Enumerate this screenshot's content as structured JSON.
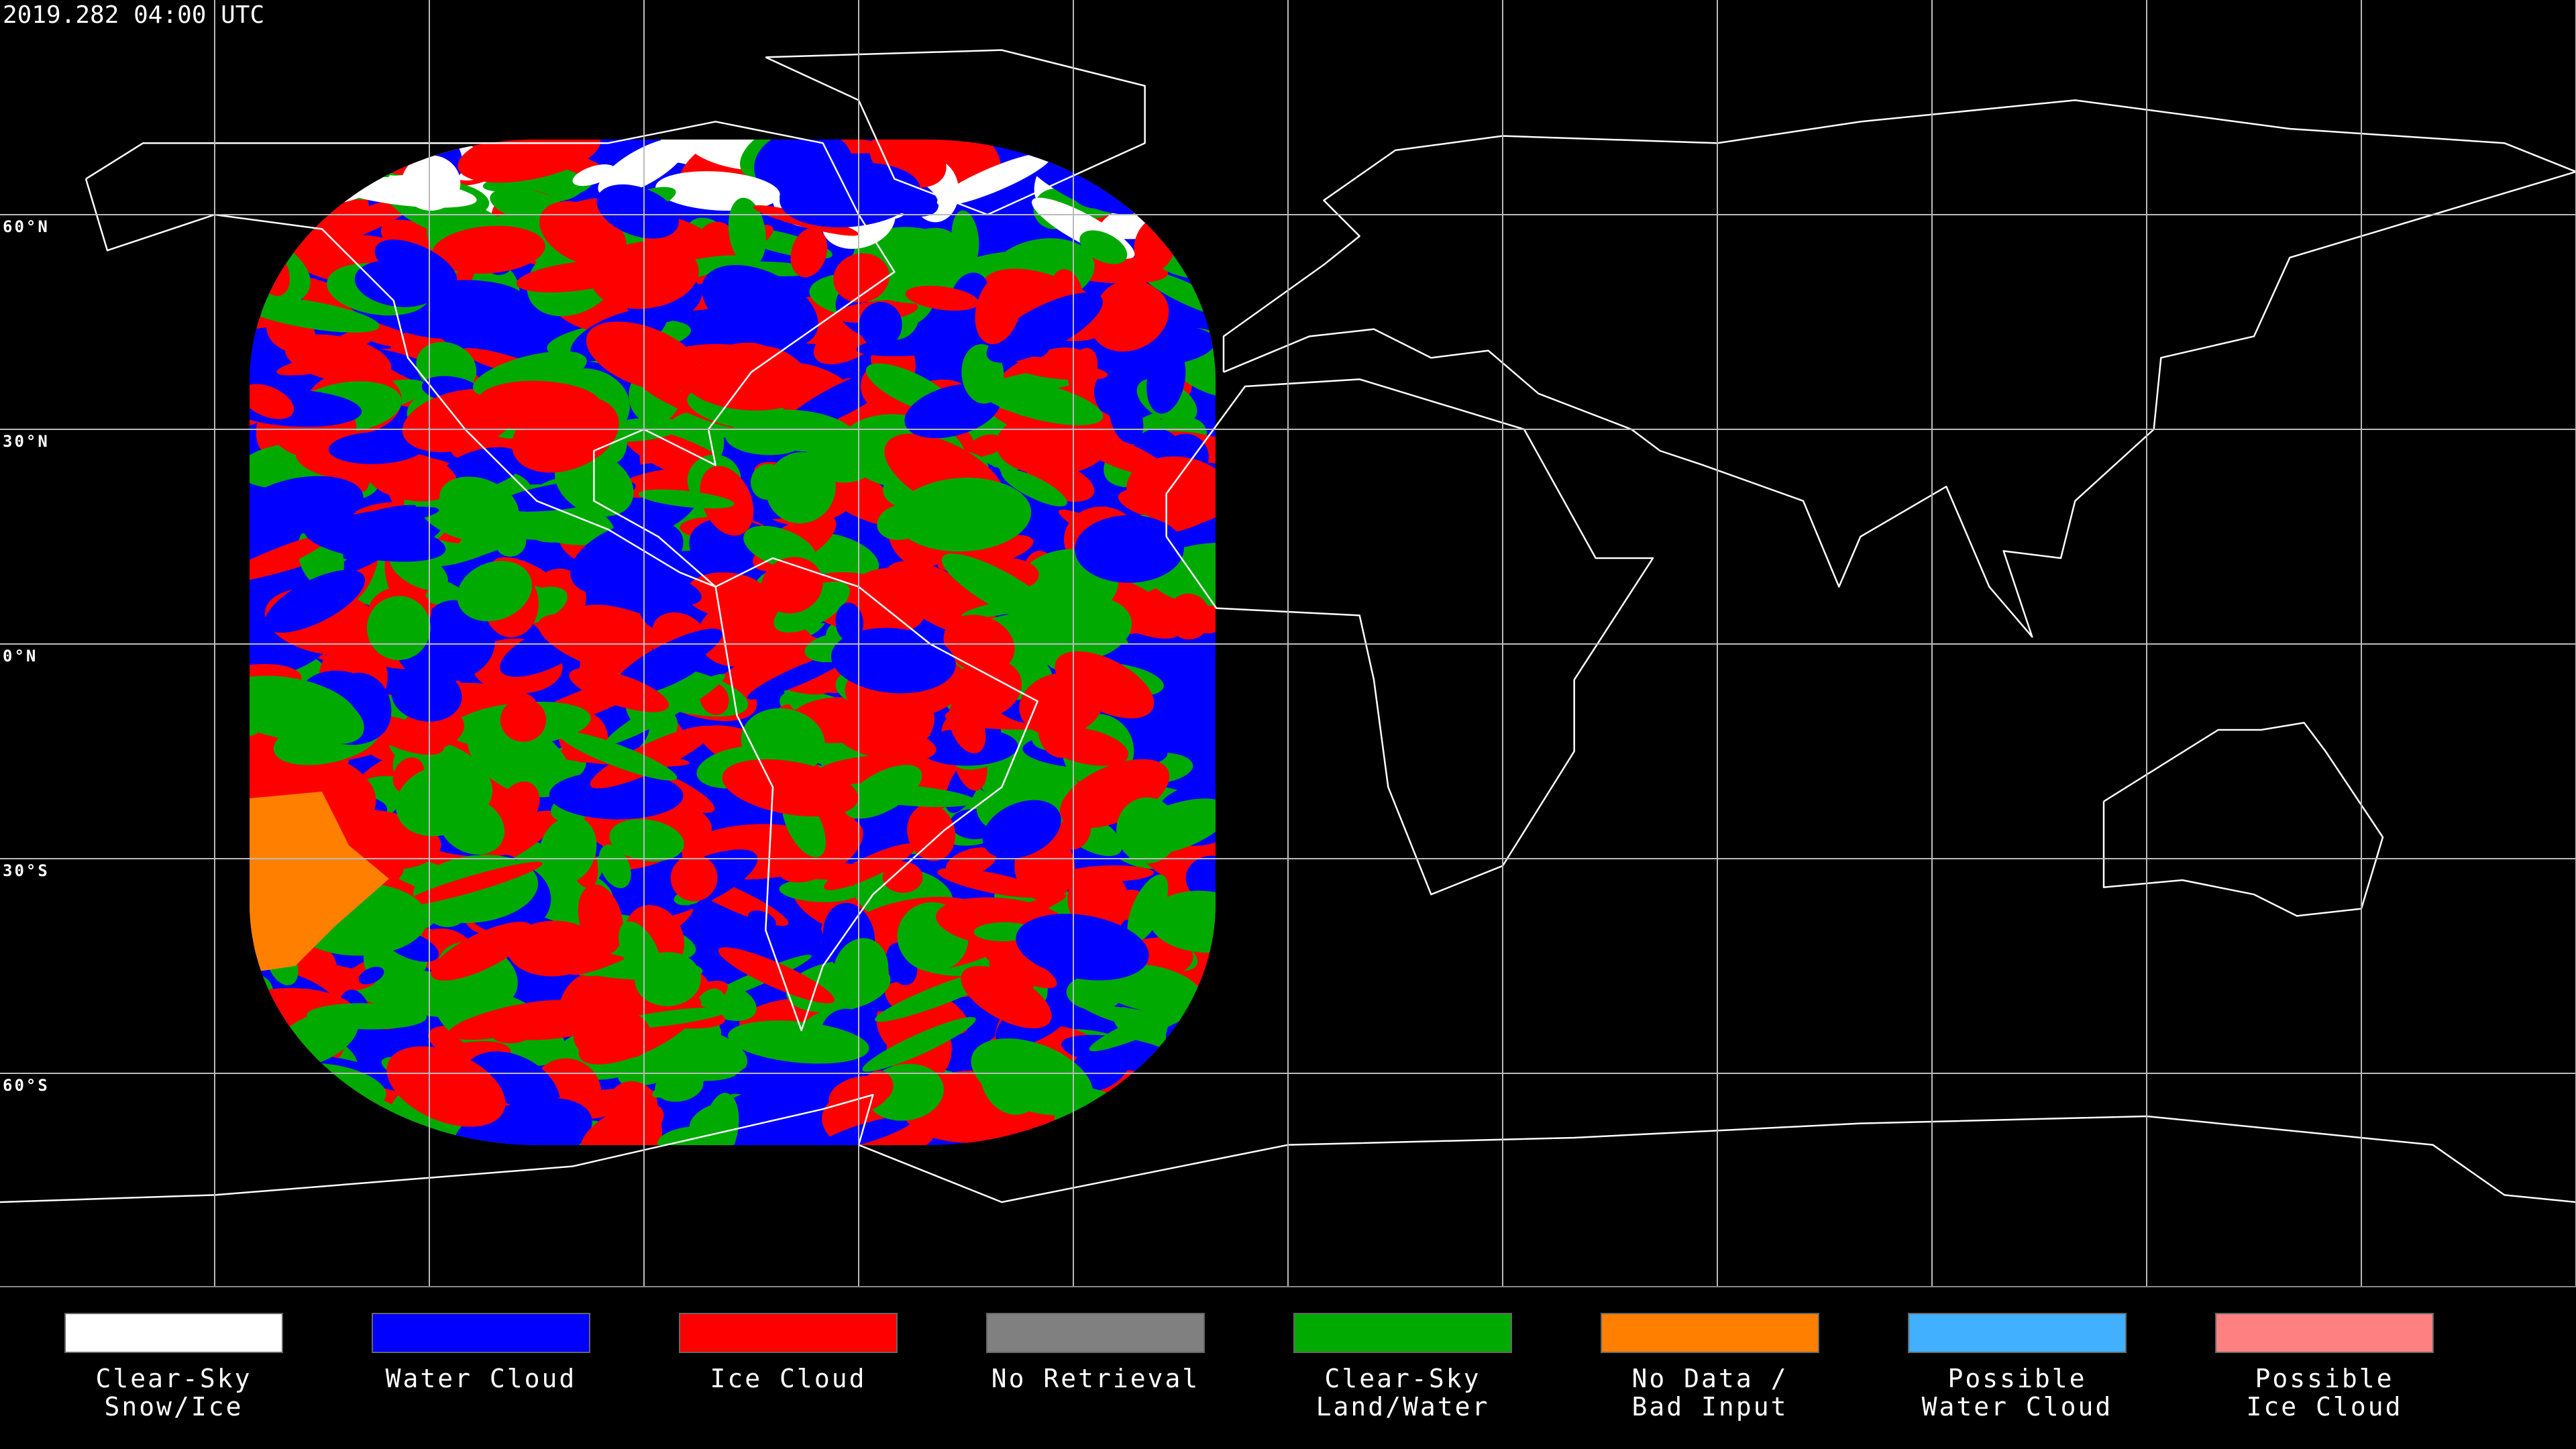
{
  "timestamp": "2019.282 04:00 UTC",
  "lat_labels": [
    "60°N",
    "30°N",
    "0°N",
    "30°S",
    "60°S"
  ],
  "legend": [
    {
      "label": [
        "Clear-Sky",
        "Snow/Ice"
      ],
      "color": "#ffffff"
    },
    {
      "label": [
        "Water Cloud"
      ],
      "color": "#0000ff"
    },
    {
      "label": [
        "Ice Cloud"
      ],
      "color": "#ff0000"
    },
    {
      "label": [
        "No Retrieval"
      ],
      "color": "#808080"
    },
    {
      "label": [
        "Clear-Sky",
        "Land/Water"
      ],
      "color": "#00aa00"
    },
    {
      "label": [
        "No Data /",
        "Bad Input"
      ],
      "color": "#ff8000"
    },
    {
      "label": [
        "Possible",
        "Water Cloud"
      ],
      "color": "#40b0ff"
    },
    {
      "label": [
        "Possible",
        "Ice Cloud"
      ],
      "color": "#ff8080"
    }
  ]
}
